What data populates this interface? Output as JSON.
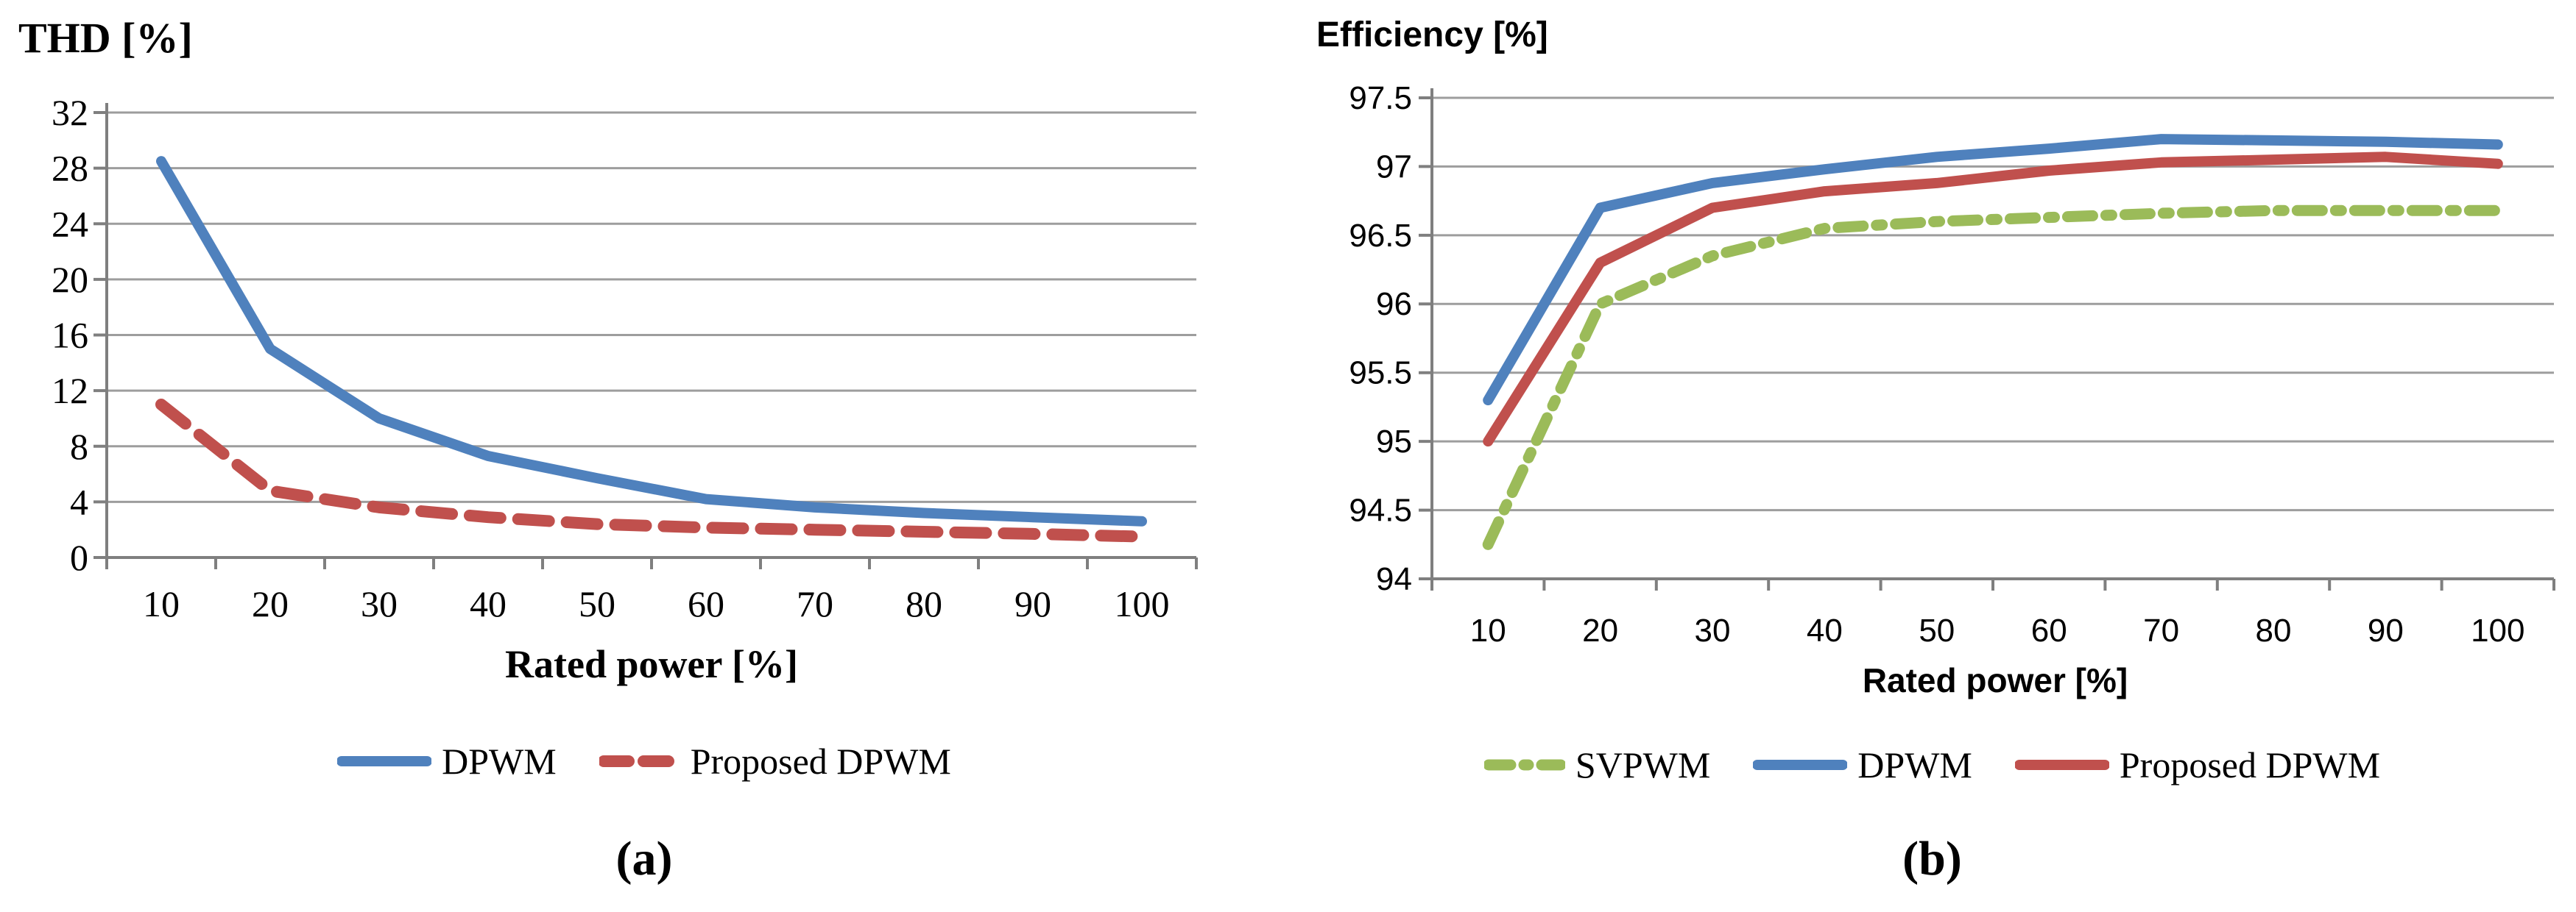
{
  "figure": {
    "caption_a": "(a)",
    "caption_b": "(b)"
  },
  "colors": {
    "blue": "#4F81BD",
    "red": "#C0504D",
    "green": "#9BBB59",
    "gridline": "#9D9D9D",
    "axis": "#7F7F7F",
    "text": "#000000"
  },
  "chart_data": [
    {
      "id": "thd",
      "type": "line",
      "title": "THD [%]",
      "xlabel": "Rated power [%]",
      "ylabel": "",
      "categories": [
        10,
        20,
        30,
        40,
        50,
        60,
        70,
        80,
        90,
        100
      ],
      "ylim": [
        0,
        32
      ],
      "ytick_step": 4,
      "yticks": [
        0,
        4,
        8,
        12,
        16,
        20,
        24,
        28,
        32
      ],
      "grid": "horizontal",
      "legend_position": "bottom",
      "series": [
        {
          "name": "DPWM",
          "color": "#4F81BD",
          "style": "solid",
          "values": [
            28.5,
            15,
            10,
            7.3,
            5.7,
            4.2,
            3.6,
            3.2,
            2.9,
            2.6
          ]
        },
        {
          "name": "Proposed DPWM",
          "color": "#C0504D",
          "style": "dash",
          "values": [
            11,
            4.8,
            3.6,
            2.9,
            2.4,
            2.15,
            2.0,
            1.85,
            1.7,
            1.5
          ]
        }
      ]
    },
    {
      "id": "efficiency",
      "type": "line",
      "title": "Efficiency [%]",
      "xlabel": "Rated power [%]",
      "ylabel": "",
      "categories": [
        10,
        20,
        30,
        40,
        50,
        60,
        70,
        80,
        90,
        100
      ],
      "ylim": [
        94,
        97.5
      ],
      "ytick_step": 0.5,
      "yticks": [
        94,
        94.5,
        95,
        95.5,
        96,
        96.5,
        97,
        97.5
      ],
      "grid": "horizontal",
      "legend_position": "bottom",
      "series": [
        {
          "name": "SVPWM",
          "color": "#9BBB59",
          "style": "dashdot",
          "values": [
            94.25,
            96.0,
            96.35,
            96.55,
            96.6,
            96.63,
            96.66,
            96.68,
            96.68,
            96.68
          ]
        },
        {
          "name": "DPWM",
          "color": "#4F81BD",
          "style": "solid",
          "values": [
            95.3,
            96.7,
            96.88,
            96.98,
            97.07,
            97.13,
            97.2,
            97.19,
            97.18,
            97.16
          ]
        },
        {
          "name": "Proposed DPWM",
          "color": "#C0504D",
          "style": "solid",
          "values": [
            95.0,
            96.3,
            96.7,
            96.82,
            96.88,
            96.97,
            97.03,
            97.05,
            97.07,
            97.02
          ]
        }
      ]
    }
  ]
}
